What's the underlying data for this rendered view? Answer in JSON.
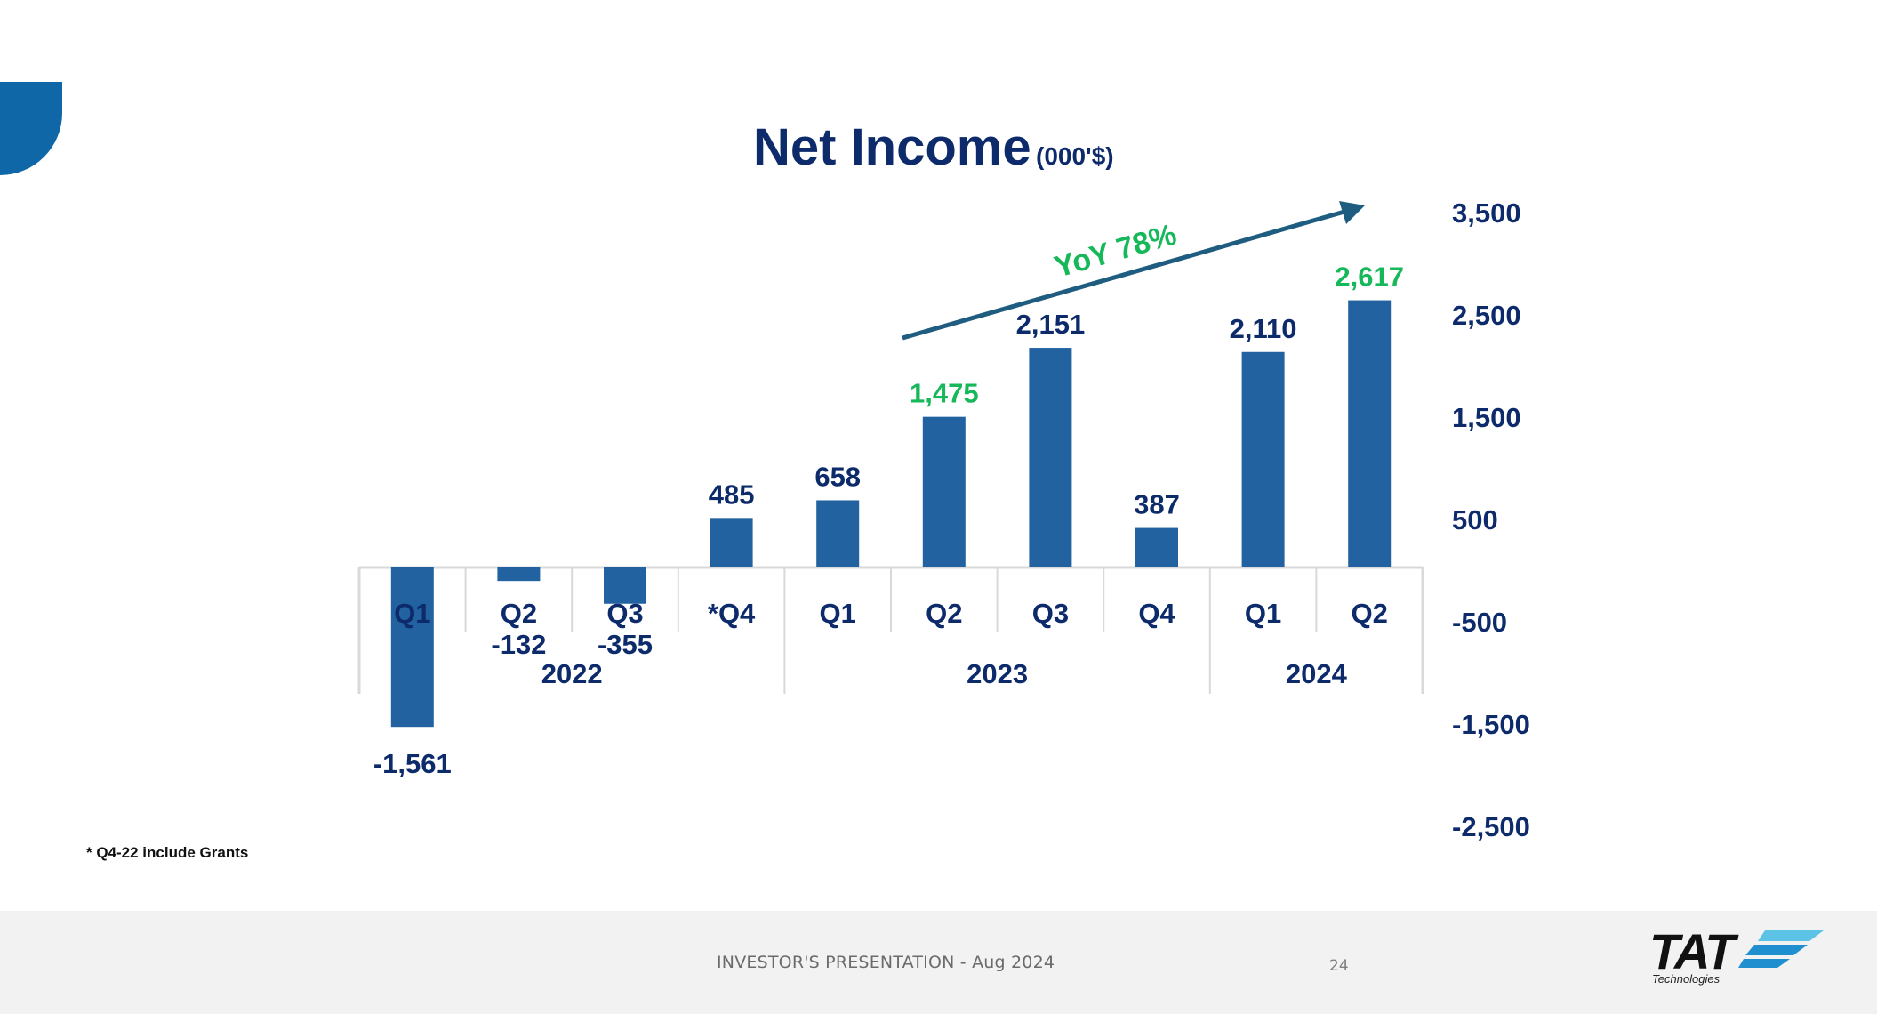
{
  "slide": {
    "footer_text": "INVESTOR'S PRESENTATION - Aug 2024",
    "page_number": "24",
    "footnote": "* Q4-22 include Grants",
    "logo": {
      "name": "TAT",
      "subtitle": "Technologies"
    },
    "colors": {
      "accent": "#0f67a8",
      "bar": "#2262a0",
      "navy": "#0d2b6b",
      "highlight": "#16b85a",
      "trend_arrow": "#1f5d80",
      "footer_bg": "#f2f2f2"
    }
  },
  "chart_data": {
    "type": "bar",
    "title": "Net Income",
    "title_unit": "(000'$)",
    "categories": [
      "Q1",
      "Q2",
      "Q3",
      "*Q4",
      "Q1",
      "Q2",
      "Q3",
      "Q4",
      "Q1",
      "Q2"
    ],
    "year_groups": [
      {
        "label": "2022",
        "start": 0,
        "end": 3
      },
      {
        "label": "2023",
        "start": 4,
        "end": 7
      },
      {
        "label": "2024",
        "start": 8,
        "end": 9
      }
    ],
    "values": [
      -1561,
      -132,
      -355,
      485,
      658,
      1475,
      2151,
      387,
      2110,
      2617
    ],
    "value_labels": [
      "-1,561",
      "-132",
      "-355",
      "485",
      "658",
      "1,475",
      "2,151",
      "387",
      "2,110",
      "2,617"
    ],
    "highlighted": [
      5,
      9
    ],
    "y_ticks": [
      3500,
      2500,
      1500,
      500,
      -500,
      -1500,
      -2500
    ],
    "y_tick_labels": [
      "3,500",
      "2,500",
      "1,500",
      "500",
      "-500",
      "-1,500",
      "-2,500"
    ],
    "ylim": [
      -2500,
      3500
    ],
    "y_axis_position": "right",
    "grid": false,
    "annotation": {
      "text": "YoY 78%",
      "from_index": 5,
      "to_index": 9
    }
  }
}
